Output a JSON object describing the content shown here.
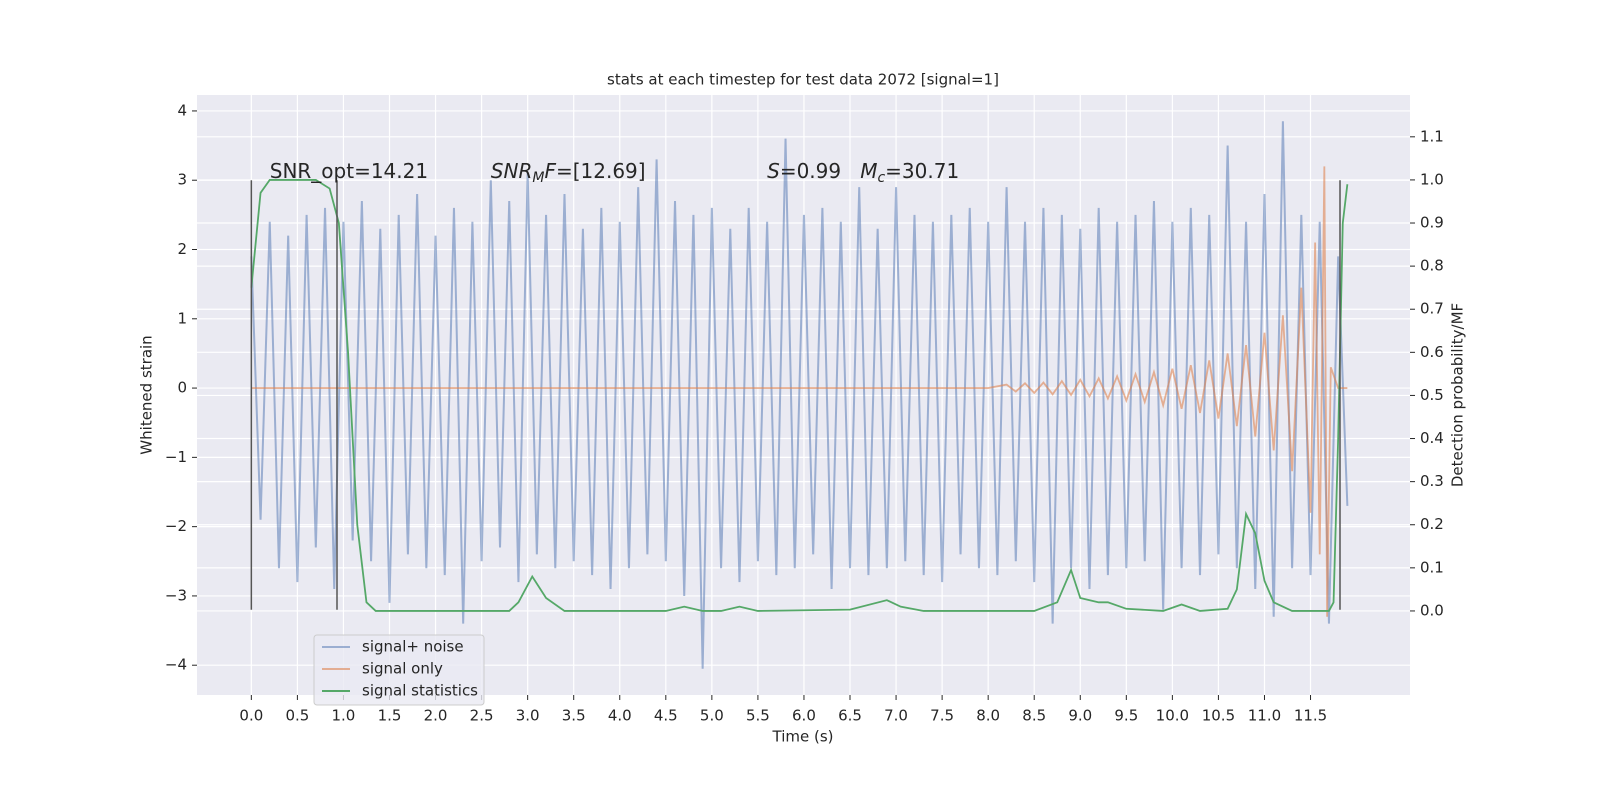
{
  "chart_data": {
    "type": "line",
    "title": "stats at each timestep for test data 2072 [signal=1]",
    "xlabel": "Time (s)",
    "ylabel": "Whitened strain",
    "y2label": "Detection probability/MF",
    "xlim": [
      -0.59,
      12.58
    ],
    "ylim": [
      -4.43,
      4.23
    ],
    "y2lim": [
      -0.195,
      1.197
    ],
    "xticks": [
      {
        "value": 0,
        "label": "0.0"
      },
      0.5,
      {
        "value": 1,
        "label": "1.0"
      },
      1.5,
      {
        "value": 2,
        "label": "2.0"
      },
      2.5,
      {
        "value": 3,
        "label": "3.0"
      },
      3.5,
      {
        "value": 4,
        "label": "4.0"
      },
      4.5,
      {
        "value": 5,
        "label": "5.0"
      },
      5.5,
      {
        "value": 6,
        "label": "6.0"
      },
      6.5,
      {
        "value": 7,
        "label": "7.0"
      },
      7.5,
      {
        "value": 8,
        "label": "8.0"
      },
      8.5,
      {
        "value": 9,
        "label": "9.0"
      },
      9.5,
      {
        "value": 10,
        "label": "10.0"
      },
      10.5,
      {
        "value": 11,
        "label": "11.0"
      },
      11.5
    ],
    "yticks": [
      {
        "value": -4,
        "label": "−4"
      },
      {
        "value": -3,
        "label": "−3"
      },
      {
        "value": -2,
        "label": "−2"
      },
      {
        "value": -1,
        "label": "−1"
      },
      0,
      1,
      2,
      3,
      4
    ],
    "y2ticks": [
      {
        "value": 0,
        "label": "0.0"
      },
      0.1,
      0.2,
      0.3,
      0.4,
      0.5,
      0.6,
      0.7,
      0.8,
      0.9,
      {
        "value": 1,
        "label": "1.0"
      },
      1.1
    ],
    "grid": true,
    "legend": "lower left",
    "series": [
      {
        "name": "signal+ noise",
        "color": "#4c72b0",
        "alpha": 0.5,
        "x": [
          0,
          0.1,
          0.2,
          0.3,
          0.4,
          0.5,
          0.6,
          0.7,
          0.8,
          0.9,
          1,
          1.1,
          1.2,
          1.3,
          1.4,
          1.5,
          1.6,
          1.7,
          1.8,
          1.9,
          2,
          2.1,
          2.2,
          2.3,
          2.4,
          2.5,
          2.6,
          2.7,
          2.8,
          2.9,
          3,
          3.1,
          3.2,
          3.3,
          3.4,
          3.5,
          3.6,
          3.7,
          3.8,
          3.9,
          4,
          4.1,
          4.2,
          4.3,
          4.4,
          4.5,
          4.6,
          4.7,
          4.8,
          4.9,
          5,
          5.1,
          5.2,
          5.3,
          5.4,
          5.5,
          5.6,
          5.7,
          5.8,
          5.9,
          6,
          6.1,
          6.2,
          6.3,
          6.4,
          6.5,
          6.6,
          6.7,
          6.8,
          6.9,
          7,
          7.1,
          7.2,
          7.3,
          7.4,
          7.5,
          7.6,
          7.7,
          7.8,
          7.9,
          8,
          8.1,
          8.2,
          8.3,
          8.4,
          8.5,
          8.6,
          8.7,
          8.8,
          8.9,
          9,
          9.1,
          9.2,
          9.3,
          9.4,
          9.5,
          9.6,
          9.7,
          9.8,
          9.9,
          10,
          10.1,
          10.2,
          10.3,
          10.4,
          10.5,
          10.6,
          10.7,
          10.8,
          10.9,
          11,
          11.1,
          11.2,
          11.3,
          11.4,
          11.5,
          11.6,
          11.7,
          11.8,
          11.9
        ],
        "values": [
          1.9,
          -1.9,
          2.4,
          -2.6,
          2.2,
          -2.8,
          2.5,
          -2.3,
          2.6,
          -2.9,
          2.4,
          -2.2,
          2.7,
          -2.5,
          2.3,
          -3.1,
          2.5,
          -2.4,
          2.8,
          -2.6,
          2.2,
          -2.7,
          2.6,
          -3.4,
          2.4,
          -2.5,
          3.0,
          -2.3,
          2.7,
          -2.8,
          3.1,
          -2.4,
          2.5,
          -2.6,
          2.8,
          -2.5,
          2.3,
          -2.7,
          2.6,
          -2.9,
          2.4,
          -2.6,
          2.9,
          -2.4,
          3.3,
          -2.5,
          2.7,
          -3.0,
          2.5,
          -4.05,
          2.6,
          -2.6,
          2.3,
          -2.8,
          2.6,
          -2.5,
          2.4,
          -2.7,
          3.6,
          -2.6,
          2.5,
          -2.4,
          2.6,
          -2.9,
          2.4,
          -2.6,
          2.9,
          -2.7,
          2.3,
          -2.6,
          2.9,
          -2.5,
          2.5,
          -2.7,
          2.4,
          -2.8,
          2.5,
          -2.4,
          2.6,
          -2.6,
          2.4,
          -2.7,
          2.9,
          -2.5,
          2.4,
          -2.8,
          2.6,
          -3.4,
          2.5,
          -2.6,
          2.3,
          -2.9,
          2.6,
          -2.7,
          2.4,
          -2.6,
          2.5,
          -2.5,
          2.7,
          -3.2,
          2.4,
          -2.6,
          2.6,
          -2.7,
          2.5,
          -2.4,
          3.5,
          -2.6,
          2.4,
          -2.9,
          2.8,
          -3.3,
          3.85,
          -2.6,
          2.5,
          -2.7,
          2.4,
          -3.4,
          1.9,
          -1.7
        ]
      },
      {
        "name": "signal only",
        "color": "#dd8452",
        "alpha": 0.6,
        "x": [
          0,
          8,
          8.2,
          8.3,
          8.4,
          8.5,
          8.6,
          8.7,
          8.8,
          8.9,
          9,
          9.1,
          9.2,
          9.3,
          9.4,
          9.5,
          9.6,
          9.7,
          9.8,
          9.9,
          10,
          10.1,
          10.2,
          10.3,
          10.4,
          10.5,
          10.6,
          10.7,
          10.8,
          10.9,
          11,
          11.1,
          11.2,
          11.3,
          11.4,
          11.5,
          11.55,
          11.6,
          11.65,
          11.68,
          11.72,
          11.8,
          11.9
        ],
        "values": [
          0,
          0,
          0.05,
          -0.05,
          0.07,
          -0.07,
          0.08,
          -0.09,
          0.1,
          -0.1,
          0.12,
          -0.12,
          0.14,
          -0.15,
          0.17,
          -0.18,
          0.2,
          -0.2,
          0.23,
          -0.25,
          0.28,
          -0.3,
          0.33,
          -0.36,
          0.4,
          -0.44,
          0.5,
          -0.55,
          0.62,
          -0.7,
          0.8,
          -0.9,
          1.05,
          -1.2,
          1.45,
          -1.8,
          2.1,
          -2.4,
          3.2,
          -3.3,
          0.3,
          0,
          0
        ]
      },
      {
        "name": "signal statistics",
        "color": "#55a868",
        "axis": "y2",
        "x": [
          0,
          0.1,
          0.2,
          0.4,
          0.7,
          0.85,
          0.95,
          1.05,
          1.15,
          1.25,
          1.35,
          2.8,
          2.9,
          3.05,
          3.2,
          3.4,
          4.5,
          4.7,
          4.9,
          5.1,
          5.3,
          5.5,
          6.5,
          6.9,
          7.05,
          7.3,
          8.5,
          8.75,
          8.9,
          9.0,
          9.2,
          9.3,
          9.5,
          9.9,
          10.1,
          10.3,
          10.6,
          10.7,
          10.8,
          10.9,
          11.0,
          11.1,
          11.3,
          11.7,
          11.75,
          11.8,
          11.85,
          11.9
        ],
        "values": [
          0.75,
          0.97,
          1.0,
          1.0,
          1.0,
          0.98,
          0.9,
          0.6,
          0.2,
          0.02,
          0,
          0,
          0.02,
          0.08,
          0.03,
          0,
          0,
          0.01,
          0,
          0,
          0.01,
          0,
          0.003,
          0.025,
          0.01,
          0,
          0,
          0.02,
          0.095,
          0.03,
          0.02,
          0.02,
          0.005,
          0,
          0.015,
          0,
          0.005,
          0.05,
          0.225,
          0.18,
          0.07,
          0.02,
          0,
          0,
          0.02,
          0.4,
          0.9,
          0.99
        ]
      }
    ],
    "vlines": {
      "x": [
        0,
        0.93,
        11.82
      ],
      "ymin": -3.2,
      "ymax": 3,
      "color": "#555555"
    },
    "annotations": [
      {
        "x": 0.2,
        "y": 3.12,
        "parts": [
          {
            "text": "SNR_opt=14.21"
          }
        ]
      },
      {
        "x": 2.6,
        "y": 3.12,
        "parts": [
          {
            "text": "SNR",
            "italic": true
          },
          {
            "text": "M",
            "italic": true,
            "sub": true
          },
          {
            "text": "F",
            "italic": true
          },
          {
            "text": "=[12.69]"
          }
        ]
      },
      {
        "x": 5.6,
        "y": 3.12,
        "parts": [
          {
            "text": "S",
            "italic": true
          },
          {
            "text": "=0.99   "
          },
          {
            "text": "M",
            "italic": true
          },
          {
            "text": "c",
            "italic": true,
            "sub": true
          },
          {
            "text": "=30.71"
          }
        ]
      }
    ]
  }
}
